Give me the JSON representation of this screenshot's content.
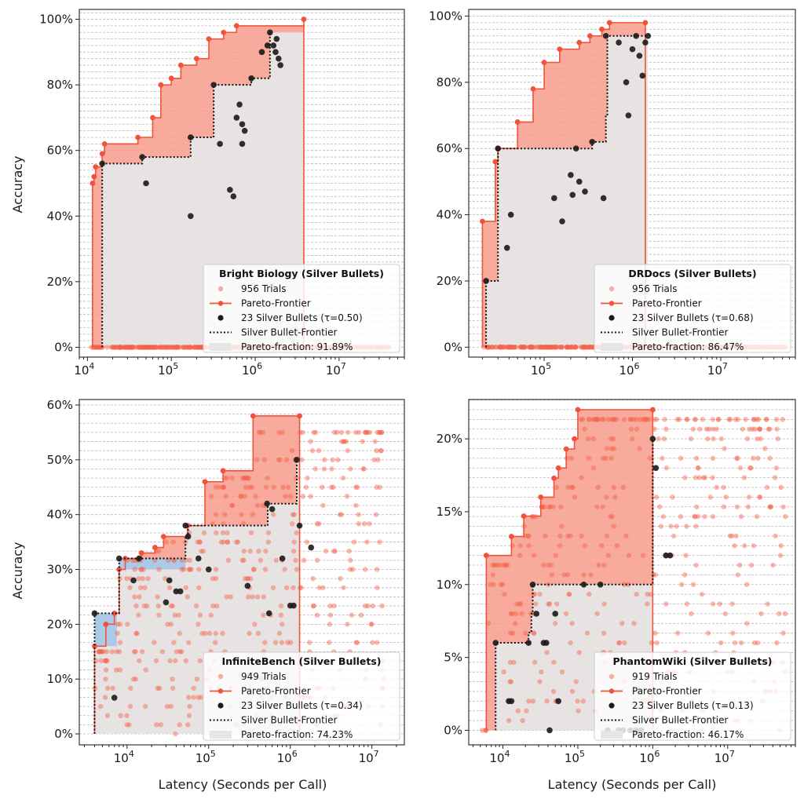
{
  "figure": {
    "shared_xlabel": "Latency (Seconds per Call)",
    "shared_ylabel": "Accuracy",
    "colors": {
      "trial": "#f4614a",
      "pareto_line": "#f0533a",
      "pareto_fill": "#f79b8b",
      "silver": "#1a1a1a",
      "grey_fill": "#e6e6e6",
      "blue_fill": "#a9c7e8",
      "grid": "#b8b8b8"
    }
  },
  "chart_data": [
    {
      "type": "scatter",
      "title": "Bright Biology (Silver Bullets)",
      "xlabel": "",
      "ylabel": "Accuracy",
      "xscale": "log",
      "xlim": [
        8000,
        60000000
      ],
      "ylim": [
        -0.03,
        1.03
      ],
      "xticks": [
        {
          "v": 10000,
          "b": "10",
          "e": "4"
        },
        {
          "v": 100000,
          "b": "10",
          "e": "5"
        },
        {
          "v": 1000000,
          "b": "10",
          "e": "6"
        },
        {
          "v": 10000000,
          "b": "10",
          "e": "7"
        }
      ],
      "yticks": [
        {
          "v": 0,
          "label": "0%"
        },
        {
          "v": 0.2,
          "label": "20%"
        },
        {
          "v": 0.4,
          "label": "40%"
        },
        {
          "v": 0.6,
          "label": "60%"
        },
        {
          "v": 0.8,
          "label": "80%"
        },
        {
          "v": 1.0,
          "label": "100%"
        }
      ],
      "grid_step": 0.02,
      "legend": {
        "position": "lower-right",
        "trials": "956 Trials",
        "frontier": "Pareto-Frontier",
        "silver": "23 Silver Bullets (τ=0.50)",
        "silver_frontier": "Silver Bullet-Frontier",
        "fraction": "Pareto-fraction: 91.89%"
      },
      "pareto": [
        [
          11500,
          0.5
        ],
        [
          12000,
          0.52
        ],
        [
          12500,
          0.55
        ],
        [
          15000,
          0.59
        ],
        [
          16000,
          0.62
        ],
        [
          40000,
          0.64
        ],
        [
          60000,
          0.7
        ],
        [
          75000,
          0.8
        ],
        [
          100000,
          0.82
        ],
        [
          130000,
          0.86
        ],
        [
          200000,
          0.88
        ],
        [
          280000,
          0.94
        ],
        [
          420000,
          0.96
        ],
        [
          600000,
          0.98
        ],
        [
          3800000,
          1.0
        ]
      ],
      "silver_frontier": [
        [
          15000,
          0.56
        ],
        [
          45000,
          0.58
        ],
        [
          170000,
          0.64
        ],
        [
          320000,
          0.8
        ],
        [
          900000,
          0.82
        ],
        [
          1500000,
          0.96
        ]
      ],
      "silver_points": [
        [
          15000,
          0.56
        ],
        [
          45000,
          0.58
        ],
        [
          50000,
          0.5
        ],
        [
          170000,
          0.4
        ],
        [
          170000,
          0.64
        ],
        [
          320000,
          0.8
        ],
        [
          380000,
          0.62
        ],
        [
          500000,
          0.48
        ],
        [
          550000,
          0.46
        ],
        [
          600000,
          0.7
        ],
        [
          650000,
          0.74
        ],
        [
          700000,
          0.68
        ],
        [
          750000,
          0.66
        ],
        [
          700000,
          0.62
        ],
        [
          900000,
          0.82
        ],
        [
          1200000,
          0.9
        ],
        [
          1500000,
          0.96
        ],
        [
          1650000,
          0.92
        ],
        [
          1800000,
          0.94
        ],
        [
          1900000,
          0.88
        ],
        [
          2000000,
          0.86
        ],
        [
          1400000,
          0.92
        ],
        [
          1750000,
          0.9
        ]
      ],
      "scatter_spec": {
        "n": 440,
        "seed": 11,
        "xmin": 11000,
        "xmax": 40000000,
        "ymin": 0.0,
        "ymax": 1.0,
        "res": 50
      }
    },
    {
      "type": "scatter",
      "title": "DRDocs (Silver Bullets)",
      "xlabel": "",
      "ylabel": "",
      "xscale": "log",
      "xlim": [
        14000,
        70000000
      ],
      "ylim": [
        -0.03,
        1.02
      ],
      "xticks": [
        {
          "v": 100000,
          "b": "10",
          "e": "5"
        },
        {
          "v": 1000000,
          "b": "10",
          "e": "6"
        },
        {
          "v": 10000000,
          "b": "10",
          "e": "7"
        }
      ],
      "yticks": [
        {
          "v": 0,
          "label": "0%"
        },
        {
          "v": 0.2,
          "label": "20%"
        },
        {
          "v": 0.4,
          "label": "40%"
        },
        {
          "v": 0.6,
          "label": "60%"
        },
        {
          "v": 0.8,
          "label": "80%"
        },
        {
          "v": 1.0,
          "label": "100%"
        }
      ],
      "grid_step": 0.02,
      "legend": {
        "position": "lower-right",
        "trials": "956 Trials",
        "frontier": "Pareto-Frontier",
        "silver": "23 Silver Bullets (τ=0.68)",
        "silver_frontier": "Silver Bullet-Frontier",
        "fraction": "Pareto-fraction: 86.47%"
      },
      "pareto": [
        [
          20000,
          0.38
        ],
        [
          28000,
          0.56
        ],
        [
          30000,
          0.6
        ],
        [
          50000,
          0.68
        ],
        [
          75000,
          0.78
        ],
        [
          100000,
          0.86
        ],
        [
          150000,
          0.9
        ],
        [
          250000,
          0.92
        ],
        [
          330000,
          0.94
        ],
        [
          450000,
          0.96
        ],
        [
          550000,
          0.98
        ],
        [
          1400000,
          0.98
        ]
      ],
      "silver_frontier": [
        [
          22000,
          0.2
        ],
        [
          30000,
          0.6
        ],
        [
          350000,
          0.62
        ],
        [
          500000,
          0.7
        ],
        [
          520000,
          0.94
        ],
        [
          1500000,
          0.94
        ]
      ],
      "silver_points": [
        [
          22000,
          0.2
        ],
        [
          30000,
          0.6
        ],
        [
          38000,
          0.3
        ],
        [
          42000,
          0.4
        ],
        [
          130000,
          0.45
        ],
        [
          160000,
          0.38
        ],
        [
          200000,
          0.52
        ],
        [
          210000,
          0.46
        ],
        [
          230000,
          0.6
        ],
        [
          250000,
          0.5
        ],
        [
          290000,
          0.47
        ],
        [
          350000,
          0.62
        ],
        [
          470000,
          0.45
        ],
        [
          500000,
          0.94
        ],
        [
          850000,
          0.8
        ],
        [
          900000,
          0.7
        ],
        [
          1000000,
          0.9
        ],
        [
          1100000,
          0.94
        ],
        [
          1200000,
          0.88
        ],
        [
          1300000,
          0.82
        ],
        [
          1400000,
          0.92
        ],
        [
          1500000,
          0.94
        ],
        [
          700000,
          0.92
        ]
      ],
      "scatter_spec": {
        "n": 440,
        "seed": 23,
        "xmin": 20000,
        "xmax": 55000000,
        "ymin": 0.0,
        "ymax": 0.98,
        "res": 30
      }
    },
    {
      "type": "scatter",
      "title": "InfiniteBench (Silver Bullets)",
      "xlabel": "Latency (Seconds per Call)",
      "ylabel": "Accuracy",
      "xscale": "log",
      "xlim": [
        2600,
        25000000
      ],
      "ylim": [
        -0.02,
        0.61
      ],
      "xticks": [
        {
          "v": 10000,
          "b": "10",
          "e": "4"
        },
        {
          "v": 100000,
          "b": "10",
          "e": "5"
        },
        {
          "v": 1000000,
          "b": "10",
          "e": "6"
        },
        {
          "v": 10000000,
          "b": "10",
          "e": "7"
        }
      ],
      "yticks": [
        {
          "v": 0,
          "label": "0%"
        },
        {
          "v": 0.1,
          "label": "10%"
        },
        {
          "v": 0.2,
          "label": "20%"
        },
        {
          "v": 0.3,
          "label": "30%"
        },
        {
          "v": 0.4,
          "label": "40%"
        },
        {
          "v": 0.5,
          "label": "50%"
        },
        {
          "v": 0.6,
          "label": "60%"
        }
      ],
      "grid_step": 0.0166667,
      "legend": {
        "position": "lower-right",
        "trials": "949 Trials",
        "frontier": "Pareto-Frontier",
        "silver": "23 Silver Bullets (τ=0.34)",
        "silver_frontier": "Silver Bullet-Frontier",
        "fraction": "Pareto-fraction: 74.23%"
      },
      "pareto": [
        [
          4000,
          0.16
        ],
        [
          5500,
          0.2
        ],
        [
          7000,
          0.22
        ],
        [
          8000,
          0.3
        ],
        [
          9500,
          0.32
        ],
        [
          15000,
          0.33
        ],
        [
          22000,
          0.34
        ],
        [
          28000,
          0.36
        ],
        [
          55000,
          0.38
        ],
        [
          90000,
          0.46
        ],
        [
          150000,
          0.48
        ],
        [
          350000,
          0.58
        ],
        [
          1300000,
          0.58
        ]
      ],
      "silver_frontier": [
        [
          4000,
          0.22
        ],
        [
          7500,
          0.22
        ],
        [
          8000,
          0.32
        ],
        [
          52000,
          0.36
        ],
        [
          56000,
          0.38
        ],
        [
          530000,
          0.42
        ],
        [
          1200000,
          0.5
        ]
      ],
      "silver_points": [
        [
          4000,
          0.22
        ],
        [
          7000,
          0.066
        ],
        [
          8000,
          0.32
        ],
        [
          12000,
          0.28
        ],
        [
          14000,
          0.32
        ],
        [
          30000,
          0.24
        ],
        [
          33000,
          0.28
        ],
        [
          40000,
          0.26
        ],
        [
          45000,
          0.26
        ],
        [
          52000,
          0.38
        ],
        [
          56000,
          0.36
        ],
        [
          75000,
          0.32
        ],
        [
          100000,
          0.3
        ],
        [
          300000,
          0.27
        ],
        [
          520000,
          0.42
        ],
        [
          550000,
          0.22
        ],
        [
          600000,
          0.41
        ],
        [
          800000,
          0.32
        ],
        [
          1000000,
          0.234
        ],
        [
          1200000,
          0.5
        ],
        [
          1300000,
          0.38
        ],
        [
          1800000,
          0.34
        ],
        [
          1100000,
          0.234
        ]
      ],
      "scatter_spec": {
        "n": 460,
        "seed": 37,
        "xmin": 4000,
        "xmax": 14000000,
        "ymin": 0.0,
        "ymax": 0.56,
        "res": 0.0166667
      }
    },
    {
      "type": "scatter",
      "title": "PhantomWiki (Silver Bullets)",
      "xlabel": "Latency (Seconds per Call)",
      "ylabel": "",
      "xscale": "log",
      "xlim": [
        3500,
        80000000
      ],
      "ylim": [
        -0.01,
        0.227
      ],
      "xticks": [
        {
          "v": 10000,
          "b": "10",
          "e": "4"
        },
        {
          "v": 100000,
          "b": "10",
          "e": "5"
        },
        {
          "v": 1000000,
          "b": "10",
          "e": "6"
        },
        {
          "v": 10000000,
          "b": "10",
          "e": "7"
        }
      ],
      "yticks": [
        {
          "v": 0,
          "label": "0%"
        },
        {
          "v": 0.05,
          "label": "5%"
        },
        {
          "v": 0.1,
          "label": "10%"
        },
        {
          "v": 0.15,
          "label": "15%"
        },
        {
          "v": 0.2,
          "label": "20%"
        }
      ],
      "grid_step": 0.0066667,
      "legend": {
        "position": "lower-right",
        "trials": "919 Trials",
        "frontier": "Pareto-Frontier",
        "silver": "23 Silver Bullets (τ=0.13)",
        "silver_frontier": "Silver Bullet-Frontier",
        "fraction": "Pareto-fraction: 46.17%"
      },
      "pareto": [
        [
          6000,
          0.12
        ],
        [
          13000,
          0.133
        ],
        [
          19000,
          0.147
        ],
        [
          32000,
          0.16
        ],
        [
          48000,
          0.173
        ],
        [
          55000,
          0.18
        ],
        [
          70000,
          0.193
        ],
        [
          90000,
          0.2
        ],
        [
          100000,
          0.22
        ],
        [
          1000000,
          0.22
        ]
      ],
      "silver_frontier": [
        [
          8000,
          0.06
        ],
        [
          22000,
          0.067
        ],
        [
          24000,
          0.08
        ],
        [
          25000,
          0.1
        ],
        [
          1000000,
          0.1
        ],
        [
          1000000,
          0.2
        ]
      ],
      "silver_points": [
        [
          8000,
          0.06
        ],
        [
          12000,
          0.02
        ],
        [
          13000,
          0.02
        ],
        [
          22000,
          0.06
        ],
        [
          25000,
          0.1
        ],
        [
          28000,
          0.08
        ],
        [
          35000,
          0.06
        ],
        [
          38000,
          0.06
        ],
        [
          42000,
          0.0
        ],
        [
          50000,
          0.08
        ],
        [
          55000,
          0.02
        ],
        [
          120000,
          0.1
        ],
        [
          200000,
          0.1
        ],
        [
          250000,
          0.0
        ],
        [
          350000,
          0.0
        ],
        [
          400000,
          0.0
        ],
        [
          600000,
          0.0
        ],
        [
          1000000,
          0.2
        ],
        [
          1100000,
          0.18
        ],
        [
          1500000,
          0.12
        ],
        [
          1700000,
          0.12
        ],
        [
          700000,
          0.0
        ],
        [
          500000,
          0.0
        ]
      ],
      "scatter_spec": {
        "n": 420,
        "seed": 53,
        "xmin": 5000,
        "xmax": 60000000,
        "ymin": 0.0,
        "ymax": 0.22,
        "res": 0.0066667
      }
    }
  ]
}
